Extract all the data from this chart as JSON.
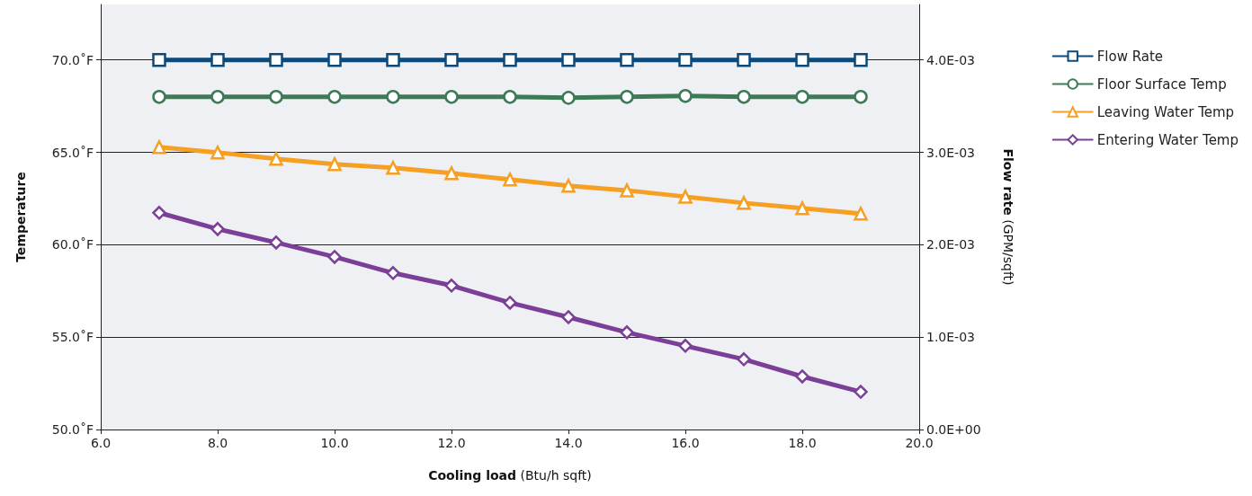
{
  "chart_data": {
    "type": "line",
    "xlabel": "Cooling load (Btu/h sqft)",
    "ylabel": "Temperature",
    "y2label": "Flow rate (GPM/sqft)",
    "x": [
      7,
      8,
      9,
      10,
      11,
      12,
      13,
      14,
      15,
      16,
      17,
      18,
      19
    ],
    "series": [
      {
        "name": "Flow Rate",
        "color": "#0b4a7a",
        "marker": "square",
        "axis": "y2",
        "values": [
          0.004,
          0.004,
          0.004,
          0.004,
          0.004,
          0.004,
          0.004,
          0.004,
          0.004,
          0.004,
          0.004,
          0.004,
          0.004
        ]
      },
      {
        "name": "Floor Surface Temp",
        "color": "#3d7a56",
        "marker": "circle",
        "values": [
          68.0,
          68.0,
          68.0,
          68.0,
          68.0,
          68.0,
          68.0,
          67.95,
          68.0,
          68.05,
          68.0,
          68.0,
          68.0
        ]
      },
      {
        "name": "Leaving Water Temp",
        "color": "#f5a023",
        "marker": "triangle",
        "values": [
          65.28,
          64.99,
          64.65,
          64.36,
          64.16,
          63.87,
          63.53,
          63.19,
          62.94,
          62.6,
          62.26,
          61.97,
          61.68
        ]
      },
      {
        "name": "Entering Water Temp",
        "color": "#7b3f98",
        "marker": "diamond",
        "values": [
          61.73,
          60.85,
          60.12,
          59.34,
          58.47,
          57.79,
          56.86,
          56.08,
          55.26,
          54.53,
          53.8,
          52.87,
          52.04
        ]
      }
    ],
    "xlim": [
      6,
      20
    ],
    "xticks": [
      {
        "value": 6,
        "label": "6.0"
      },
      {
        "value": 8,
        "label": "8.0"
      },
      {
        "value": 10,
        "label": "10.0"
      },
      {
        "value": 12,
        "label": "12.0"
      },
      {
        "value": 14,
        "label": "14.0"
      },
      {
        "value": 16,
        "label": "16.0"
      },
      {
        "value": 18,
        "label": "18.0"
      },
      {
        "value": 20,
        "label": "20.0"
      }
    ],
    "ylim": [
      50,
      73
    ],
    "yticks": [
      {
        "value": 50,
        "label": "50.0˚F"
      },
      {
        "value": 55,
        "label": "55.0˚F"
      },
      {
        "value": 60,
        "label": "60.0˚F"
      },
      {
        "value": 65,
        "label": "65.0˚F"
      },
      {
        "value": 70,
        "label": "70.0˚F"
      }
    ],
    "y2lim": [
      0,
      0.0046
    ],
    "y2ticks": [
      {
        "value": 0,
        "label": "0.0E+00"
      },
      {
        "value": 0.001,
        "label": "1.0E-03"
      },
      {
        "value": 0.002,
        "label": "2.0E-03"
      },
      {
        "value": 0.003,
        "label": "3.0E-03"
      },
      {
        "value": 0.004,
        "label": "4.0E-03"
      }
    ],
    "grid": "y",
    "legend": "right"
  }
}
